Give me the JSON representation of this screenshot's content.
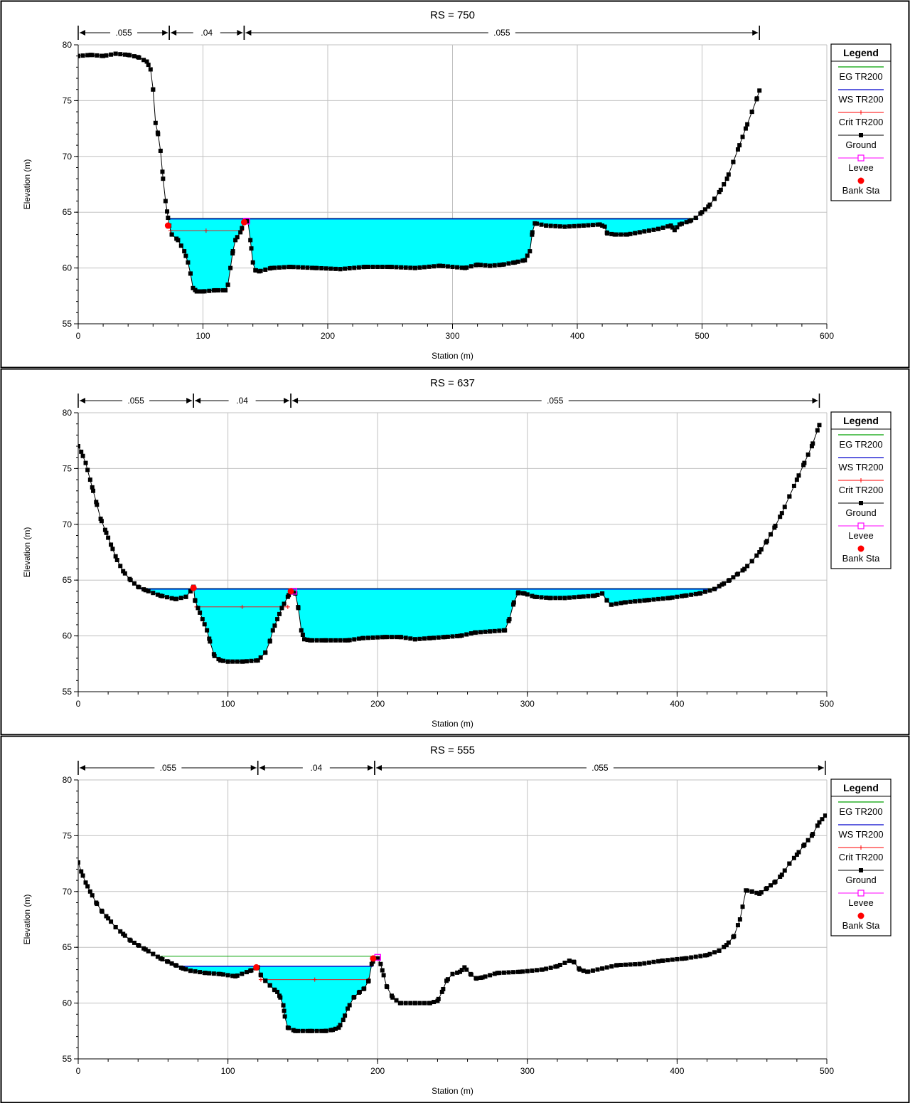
{
  "chart_data": [
    {
      "type": "line",
      "title": "RS = 750",
      "xlabel": "Station (m)",
      "ylabel": "Elevation (m)",
      "xlim": [
        0,
        600
      ],
      "ylim": [
        55,
        80
      ],
      "x_ticks": [
        0,
        100,
        200,
        300,
        400,
        500,
        600
      ],
      "y_ticks": [
        55,
        60,
        65,
        70,
        75,
        80
      ],
      "grid": true,
      "legend_position": "right",
      "legend": {
        "title": "Legend",
        "entries": [
          {
            "name": "EG TR200",
            "color": "#00a000",
            "marker": "none"
          },
          {
            "name": "WS TR200",
            "color": "#0000cc",
            "marker": "none"
          },
          {
            "name": "Crit TR200",
            "color": "#ff0000",
            "marker": "plus"
          },
          {
            "name": "Ground",
            "color": "#000000",
            "marker": "square"
          },
          {
            "name": "Levee",
            "color": "#ff00ff",
            "marker": "open-square"
          },
          {
            "name": "Bank Sta",
            "color": "#ff0000",
            "marker": "dot"
          }
        ]
      },
      "manning": [
        {
          "from": 0,
          "to": 73,
          "label": ".055"
        },
        {
          "from": 73,
          "to": 133,
          "label": ".04"
        },
        {
          "from": 133,
          "to": 546,
          "label": ".055"
        }
      ],
      "ground": [
        [
          0,
          79
        ],
        [
          10,
          79.1
        ],
        [
          20,
          79
        ],
        [
          30,
          79.2
        ],
        [
          40,
          79.1
        ],
        [
          48,
          78.9
        ],
        [
          55,
          78.5
        ],
        [
          58,
          77.8
        ],
        [
          60,
          76
        ],
        [
          62,
          73
        ],
        [
          64,
          72
        ],
        [
          66,
          70.5
        ],
        [
          68,
          68
        ],
        [
          70,
          66
        ],
        [
          72,
          64.5
        ],
        [
          73,
          63.8
        ],
        [
          75,
          63
        ],
        [
          80,
          62.5
        ],
        [
          85,
          61.5
        ],
        [
          88,
          60.5
        ],
        [
          90,
          59.5
        ],
        [
          92,
          58.2
        ],
        [
          95,
          57.9
        ],
        [
          100,
          57.9
        ],
        [
          110,
          58
        ],
        [
          118,
          58
        ],
        [
          120,
          58.5
        ],
        [
          122,
          60
        ],
        [
          124,
          61.5
        ],
        [
          126,
          62.5
        ],
        [
          130,
          63.2
        ],
        [
          133,
          64.1
        ],
        [
          136,
          64.2
        ],
        [
          138,
          62.5
        ],
        [
          140,
          60.5
        ],
        [
          142,
          59.8
        ],
        [
          145,
          59.7
        ],
        [
          155,
          60
        ],
        [
          170,
          60.1
        ],
        [
          190,
          60
        ],
        [
          210,
          59.9
        ],
        [
          230,
          60.1
        ],
        [
          250,
          60.1
        ],
        [
          270,
          60
        ],
        [
          290,
          60.2
        ],
        [
          310,
          60
        ],
        [
          320,
          60.3
        ],
        [
          330,
          60.2
        ],
        [
          340,
          60.3
        ],
        [
          350,
          60.5
        ],
        [
          358,
          60.7
        ],
        [
          362,
          61.5
        ],
        [
          364,
          63.2
        ],
        [
          366,
          64
        ],
        [
          375,
          63.8
        ],
        [
          390,
          63.7
        ],
        [
          405,
          63.8
        ],
        [
          418,
          63.9
        ],
        [
          422,
          63.7
        ],
        [
          424,
          63.1
        ],
        [
          430,
          63
        ],
        [
          440,
          63
        ],
        [
          450,
          63.2
        ],
        [
          465,
          63.5
        ],
        [
          475,
          63.8
        ],
        [
          478,
          63.4
        ],
        [
          482,
          63.9
        ],
        [
          490,
          64.2
        ],
        [
          495,
          64.5
        ],
        [
          500,
          65
        ],
        [
          505,
          65.5
        ],
        [
          510,
          66.2
        ],
        [
          515,
          67
        ],
        [
          520,
          68
        ],
        [
          525,
          69.5
        ],
        [
          530,
          71
        ],
        [
          535,
          72.5
        ],
        [
          540,
          74
        ],
        [
          544,
          75.2
        ],
        [
          546,
          75.9
        ]
      ],
      "water_surface": [
        {
          "start": 73,
          "end": 133,
          "elevation": 64.4
        },
        {
          "start": 133,
          "end": 497,
          "elevation": 64.4
        }
      ],
      "eg": [
        {
          "start": 73,
          "end": 497,
          "elevation": 64.45
        }
      ],
      "critical": [
        {
          "start": 74,
          "end": 131,
          "elevation": 63.35
        }
      ],
      "levee": [
        [
          135,
          64.2
        ]
      ],
      "bank_sta": [
        [
          72,
          63.8
        ],
        [
          133,
          64.1
        ]
      ]
    },
    {
      "type": "line",
      "title": "RS = 637",
      "xlabel": "Station (m)",
      "ylabel": "Elevation (m)",
      "xlim": [
        0,
        500
      ],
      "ylim": [
        55,
        80
      ],
      "x_ticks": [
        0,
        100,
        200,
        300,
        400,
        500
      ],
      "y_ticks": [
        55,
        60,
        65,
        70,
        75,
        80
      ],
      "grid": true,
      "legend_position": "right",
      "legend": {
        "title": "Legend",
        "entries": [
          {
            "name": "EG TR200",
            "color": "#00a000",
            "marker": "none"
          },
          {
            "name": "WS TR200",
            "color": "#0000cc",
            "marker": "none"
          },
          {
            "name": "Crit TR200",
            "color": "#ff0000",
            "marker": "plus"
          },
          {
            "name": "Ground",
            "color": "#000000",
            "marker": "square"
          },
          {
            "name": "Levee",
            "color": "#ff00ff",
            "marker": "open-square"
          },
          {
            "name": "Bank Sta",
            "color": "#ff0000",
            "marker": "dot"
          }
        ]
      },
      "manning": [
        {
          "from": 0,
          "to": 77,
          "label": ".055"
        },
        {
          "from": 77,
          "to": 142,
          "label": ".04"
        },
        {
          "from": 142,
          "to": 495,
          "label": ".055"
        }
      ],
      "ground": [
        [
          0,
          77
        ],
        [
          2,
          76.5
        ],
        [
          5,
          75.5
        ],
        [
          8,
          74
        ],
        [
          10,
          73
        ],
        [
          12,
          72
        ],
        [
          15,
          70.5
        ],
        [
          18,
          69.5
        ],
        [
          20,
          68.8
        ],
        [
          23,
          67.8
        ],
        [
          26,
          66.8
        ],
        [
          30,
          65.8
        ],
        [
          35,
          65
        ],
        [
          40,
          64.4
        ],
        [
          45,
          64.1
        ],
        [
          55,
          63.6
        ],
        [
          65,
          63.3
        ],
        [
          72,
          63.5
        ],
        [
          75,
          64
        ],
        [
          77,
          64.4
        ],
        [
          78,
          63.2
        ],
        [
          80,
          62.5
        ],
        [
          83,
          61.5
        ],
        [
          86,
          60.5
        ],
        [
          88,
          59.5
        ],
        [
          91,
          58.2
        ],
        [
          95,
          57.8
        ],
        [
          100,
          57.7
        ],
        [
          110,
          57.7
        ],
        [
          120,
          57.8
        ],
        [
          125,
          58.5
        ],
        [
          128,
          59.5
        ],
        [
          130,
          60.5
        ],
        [
          133,
          61.5
        ],
        [
          136,
          62.5
        ],
        [
          140,
          63.5
        ],
        [
          142,
          64
        ],
        [
          145,
          63.8
        ],
        [
          147,
          62.5
        ],
        [
          149,
          60.5
        ],
        [
          151,
          59.7
        ],
        [
          155,
          59.6
        ],
        [
          165,
          59.6
        ],
        [
          180,
          59.6
        ],
        [
          190,
          59.8
        ],
        [
          205,
          59.9
        ],
        [
          215,
          59.9
        ],
        [
          225,
          59.7
        ],
        [
          235,
          59.8
        ],
        [
          245,
          59.9
        ],
        [
          255,
          60
        ],
        [
          265,
          60.3
        ],
        [
          275,
          60.4
        ],
        [
          285,
          60.5
        ],
        [
          288,
          61.5
        ],
        [
          291,
          63
        ],
        [
          294,
          63.9
        ],
        [
          298,
          63.8
        ],
        [
          305,
          63.5
        ],
        [
          315,
          63.4
        ],
        [
          325,
          63.4
        ],
        [
          335,
          63.5
        ],
        [
          345,
          63.6
        ],
        [
          350,
          63.8
        ],
        [
          353,
          63.2
        ],
        [
          356,
          62.8
        ],
        [
          365,
          63
        ],
        [
          380,
          63.2
        ],
        [
          395,
          63.4
        ],
        [
          405,
          63.6
        ],
        [
          415,
          63.8
        ],
        [
          425,
          64.2
        ],
        [
          430,
          64.6
        ],
        [
          435,
          65
        ],
        [
          440,
          65.5
        ],
        [
          445,
          66
        ],
        [
          450,
          66.7
        ],
        [
          455,
          67.5
        ],
        [
          460,
          68.5
        ],
        [
          465,
          69.7
        ],
        [
          470,
          71
        ],
        [
          475,
          72.5
        ],
        [
          480,
          74
        ],
        [
          485,
          75.5
        ],
        [
          490,
          77
        ],
        [
          495,
          78.9
        ]
      ],
      "water_surface": [
        {
          "start": 42,
          "end": 77,
          "elevation": 64.2
        },
        {
          "start": 77,
          "end": 142,
          "elevation": 64.2
        },
        {
          "start": 142,
          "end": 427,
          "elevation": 64.2
        }
      ],
      "eg": [
        {
          "start": 42,
          "end": 427,
          "elevation": 64.25
        }
      ],
      "critical": [
        {
          "start": 79,
          "end": 140,
          "elevation": 62.6
        }
      ],
      "levee": [
        [
          144,
          64
        ]
      ],
      "bank_sta": [
        [
          77,
          64.3
        ],
        [
          142,
          64
        ]
      ]
    },
    {
      "type": "line",
      "title": "RS = 555",
      "xlabel": "Station (m)",
      "ylabel": "Elevation (m)",
      "xlim": [
        0,
        500
      ],
      "ylim": [
        55,
        80
      ],
      "x_ticks": [
        0,
        100,
        200,
        300,
        400,
        500
      ],
      "y_ticks": [
        55,
        60,
        65,
        70,
        75,
        80
      ],
      "grid": true,
      "legend_position": "right",
      "legend": {
        "title": "Legend",
        "entries": [
          {
            "name": "EG TR200",
            "color": "#00a000",
            "marker": "none"
          },
          {
            "name": "WS TR200",
            "color": "#0000cc",
            "marker": "none"
          },
          {
            "name": "Crit TR200",
            "color": "#ff0000",
            "marker": "plus"
          },
          {
            "name": "Ground",
            "color": "#000000",
            "marker": "square"
          },
          {
            "name": "Levee",
            "color": "#ff00ff",
            "marker": "open-square"
          },
          {
            "name": "Bank Sta",
            "color": "#ff0000",
            "marker": "dot"
          }
        ]
      },
      "manning": [
        {
          "from": 0,
          "to": 120,
          "label": ".055"
        },
        {
          "from": 120,
          "to": 198,
          "label": ".04"
        },
        {
          "from": 198,
          "to": 499,
          "label": ".055"
        }
      ],
      "ground": [
        [
          0,
          72.6
        ],
        [
          2,
          71.8
        ],
        [
          5,
          70.8
        ],
        [
          8,
          70
        ],
        [
          12,
          69
        ],
        [
          16,
          68.2
        ],
        [
          20,
          67.6
        ],
        [
          25,
          66.8
        ],
        [
          30,
          66.2
        ],
        [
          35,
          65.6
        ],
        [
          40,
          65.2
        ],
        [
          45,
          64.8
        ],
        [
          50,
          64.4
        ],
        [
          55,
          64
        ],
        [
          60,
          63.7
        ],
        [
          65,
          63.4
        ],
        [
          70,
          63.1
        ],
        [
          75,
          62.9
        ],
        [
          85,
          62.7
        ],
        [
          95,
          62.6
        ],
        [
          105,
          62.4
        ],
        [
          115,
          62.9
        ],
        [
          120,
          63.2
        ],
        [
          122,
          62.5
        ],
        [
          125,
          62
        ],
        [
          128,
          61.6
        ],
        [
          131,
          61.2
        ],
        [
          133,
          61
        ],
        [
          135,
          60.5
        ],
        [
          137,
          59.8
        ],
        [
          138,
          58.8
        ],
        [
          140,
          57.8
        ],
        [
          145,
          57.5
        ],
        [
          155,
          57.5
        ],
        [
          165,
          57.5
        ],
        [
          170,
          57.6
        ],
        [
          174,
          57.8
        ],
        [
          177,
          58.5
        ],
        [
          180,
          59.5
        ],
        [
          184,
          60.5
        ],
        [
          188,
          61
        ],
        [
          191,
          61.3
        ],
        [
          194,
          62
        ],
        [
          196,
          63.5
        ],
        [
          198,
          64
        ],
        [
          200,
          64
        ],
        [
          202,
          63.5
        ],
        [
          204,
          62.5
        ],
        [
          206,
          61.5
        ],
        [
          210,
          60.5
        ],
        [
          215,
          60
        ],
        [
          225,
          60
        ],
        [
          235,
          60
        ],
        [
          240,
          60.2
        ],
        [
          243,
          61
        ],
        [
          246,
          62
        ],
        [
          250,
          62.6
        ],
        [
          255,
          62.8
        ],
        [
          258,
          63.2
        ],
        [
          262,
          62.6
        ],
        [
          266,
          62.2
        ],
        [
          270,
          62.3
        ],
        [
          280,
          62.7
        ],
        [
          295,
          62.8
        ],
        [
          310,
          63
        ],
        [
          320,
          63.3
        ],
        [
          328,
          63.8
        ],
        [
          331,
          63.7
        ],
        [
          335,
          63
        ],
        [
          340,
          62.8
        ],
        [
          350,
          63.1
        ],
        [
          360,
          63.4
        ],
        [
          375,
          63.5
        ],
        [
          390,
          63.8
        ],
        [
          405,
          64
        ],
        [
          420,
          64.3
        ],
        [
          428,
          64.7
        ],
        [
          433,
          65.2
        ],
        [
          438,
          66
        ],
        [
          442,
          67.5
        ],
        [
          446,
          70.1
        ],
        [
          450,
          70
        ],
        [
          455,
          69.8
        ],
        [
          460,
          70.3
        ],
        [
          465,
          70.8
        ],
        [
          470,
          71.5
        ],
        [
          475,
          72.5
        ],
        [
          480,
          73.3
        ],
        [
          485,
          74.2
        ],
        [
          490,
          75
        ],
        [
          495,
          76.2
        ],
        [
          499,
          76.8
        ]
      ],
      "water_surface": [
        {
          "start": 65,
          "end": 120,
          "elevation": 63.3
        },
        {
          "start": 120,
          "end": 197,
          "elevation": 63.3
        }
      ],
      "eg": [
        {
          "start": 55,
          "end": 197,
          "elevation": 64.2
        }
      ],
      "critical": [
        {
          "start": 122,
          "end": 194,
          "elevation": 62.1
        }
      ],
      "levee": [
        [
          200,
          64.1
        ]
      ],
      "bank_sta": [
        [
          119,
          63.2
        ],
        [
          197,
          64
        ]
      ]
    }
  ]
}
